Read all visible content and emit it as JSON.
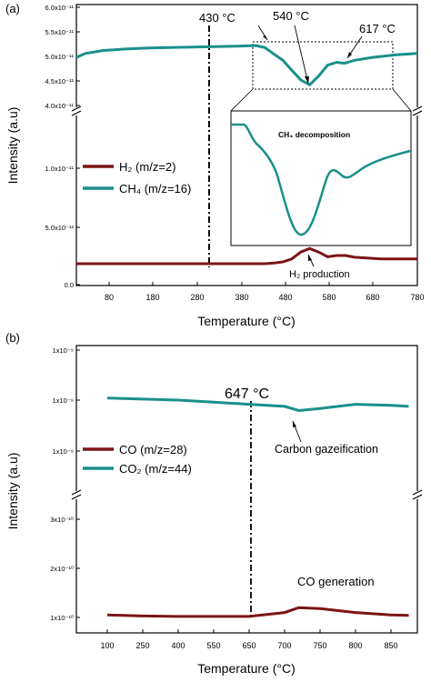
{
  "colors": {
    "h2": "#7b1416",
    "ch4": "#1a8f8c",
    "co": "#7b1416",
    "co2": "#1a8f8c"
  },
  "chart_data": [
    {
      "panel_label": "(a)",
      "type": "line",
      "xlabel": "Temperature (°C)",
      "ylabel": "Intensity (a.u)",
      "xlim": [
        20,
        780
      ],
      "x_ticks": [
        "80",
        "180",
        "280",
        "380",
        "480",
        "580",
        "680",
        "780"
      ],
      "upper": {
        "ylim": [
          4e-11,
          6e-11
        ],
        "y_ticks": [
          "4.0x10⁻¹¹",
          "4.5x10⁻¹¹",
          "5.0x10⁻¹¹",
          "5.5x10⁻¹¹",
          "6.0x10⁻¹¹"
        ]
      },
      "lower": {
        "ylim": [
          0,
          1.3e-11
        ],
        "y_ticks": [
          "0.0",
          "5.0x10⁻¹²",
          "1.0x10⁻¹¹"
        ]
      },
      "series": [
        {
          "name": "H₂ (m/z=2)",
          "x": [
            20,
            100,
            200,
            300,
            400,
            440,
            460,
            480,
            500,
            520,
            540,
            560,
            580,
            600,
            620,
            640,
            700,
            780
          ],
          "y": [
            1.8e-12,
            1.8e-12,
            1.8e-12,
            1.8e-12,
            1.8e-12,
            1.8e-12,
            1.85e-12,
            1.95e-12,
            2.2e-12,
            2.8e-12,
            3.1e-12,
            2.8e-12,
            2.4e-12,
            2.5e-12,
            2.5e-12,
            2.35e-12,
            2.2e-12,
            2.2e-12
          ]
        },
        {
          "name": "CH₄ (m/z=16)",
          "x": [
            20,
            40,
            80,
            130,
            180,
            230,
            280,
            330,
            380,
            420,
            440,
            460,
            480,
            500,
            520,
            540,
            560,
            580,
            600,
            617,
            640,
            680,
            730,
            780
          ],
          "y": [
            4.98e-11,
            5.06e-11,
            5.12e-11,
            5.15e-11,
            5.17e-11,
            5.18e-11,
            5.19e-11,
            5.2e-11,
            5.21e-11,
            5.22e-11,
            5.18e-11,
            5.05e-11,
            4.92e-11,
            4.72e-11,
            4.52e-11,
            4.42e-11,
            4.6e-11,
            4.82e-11,
            4.88e-11,
            4.86e-11,
            4.92e-11,
            4.98e-11,
            5.03e-11,
            5.06e-11
          ]
        }
      ],
      "annotations": [
        {
          "text": "430 °C",
          "x": 430
        },
        {
          "text": "540 °C",
          "x": 540
        },
        {
          "text": "617 °C",
          "x": 617
        },
        {
          "text": "H₂ production",
          "x": 540
        }
      ],
      "inset": {
        "label": "CH₄ decomposition"
      },
      "legend": "left"
    },
    {
      "panel_label": "(b)",
      "type": "line",
      "xlabel": "Temperature (°C)",
      "ylabel": "Intensity (a.u)",
      "x_ticks": [
        "100",
        "250",
        "400",
        "550",
        "650",
        "700",
        "750",
        "800",
        "850"
      ],
      "upper_y_ticks": [
        "1x10⁻⁹",
        "1x10⁻⁹",
        "1x10⁻⁹"
      ],
      "lower_y_ticks": [
        "1x10⁻¹⁰",
        "2x10⁻¹⁰",
        "3x10⁻¹⁰"
      ],
      "series": [
        {
          "name": "CO (m/z=28)",
          "x": [
            100,
            250,
            400,
            550,
            650,
            700,
            720,
            750,
            800,
            850,
            875
          ],
          "y": [
            1.05e-10,
            1.03e-10,
            1.02e-10,
            1.02e-10,
            1.02e-10,
            1.1e-10,
            1.2e-10,
            1.18e-10,
            1.1e-10,
            1.05e-10,
            1.04e-10
          ]
        },
        {
          "name": "CO₂ (m/z=44)",
          "x": [
            100,
            250,
            400,
            550,
            650,
            700,
            720,
            750,
            800,
            850,
            875
          ],
          "y": [
            0.92,
            0.91,
            0.9,
            0.88,
            0.86,
            0.84,
            0.8,
            0.82,
            0.86,
            0.85,
            0.84
          ]
        }
      ],
      "annotations": [
        {
          "text": "647 °C",
          "x": 647
        },
        {
          "text": "Carbon gazeification",
          "x": 720
        },
        {
          "text": "CO generation",
          "x": 720
        }
      ],
      "legend": "left"
    }
  ]
}
